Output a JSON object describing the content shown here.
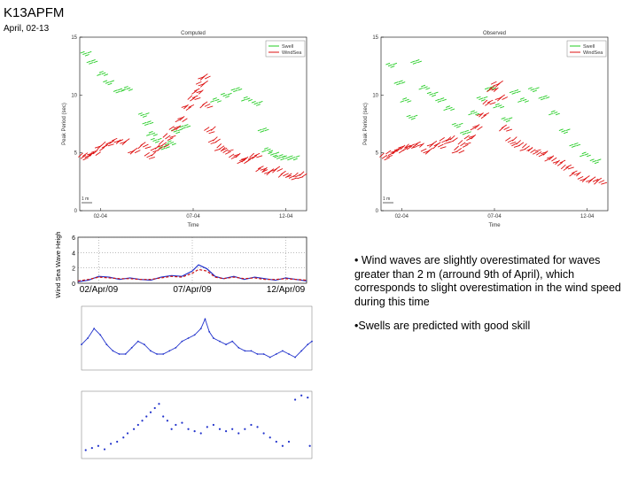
{
  "slide": {
    "title": "K13APFM",
    "subtitle": "April, 02-13"
  },
  "bullets": [
    "• Wind waves are slightly overestimated for waves greater than 2 m (arround 9th of April), which corresponds to slight overestimation in the wind speed during this time",
    "•Swells are predicted with good skill"
  ],
  "colors": {
    "swell": "#22cc22",
    "windsea": "#dd1111",
    "line_blue": "#2233cc",
    "line_red": "#cc1111",
    "axis": "#000000"
  },
  "chart_data": [
    {
      "id": "computed",
      "type": "scatter",
      "title": "Computed",
      "xlabel": "Time",
      "ylabel": "Peak Period (sec)",
      "xticklabels": [
        "02-04",
        "07-04",
        "12-04"
      ],
      "yticks": [
        0,
        5,
        10,
        15
      ],
      "ylim": [
        0,
        15
      ],
      "xlim": [
        0,
        11
      ],
      "legend": {
        "position": "top-right",
        "entries": [
          "Swell",
          "WindSea"
        ]
      },
      "scale_label": "1 m",
      "series": [
        {
          "name": "Swell",
          "points": [
            [
              0.2,
              13.5
            ],
            [
              0.5,
              12.8
            ],
            [
              1.0,
              11.8
            ],
            [
              1.3,
              11.0
            ],
            [
              1.8,
              10.3
            ],
            [
              2.2,
              10.5
            ],
            [
              3.0,
              8.2
            ],
            [
              3.2,
              7.5
            ],
            [
              3.4,
              6.6
            ],
            [
              3.6,
              6.0
            ],
            [
              4.0,
              5.4
            ],
            [
              4.3,
              5.8
            ],
            [
              4.6,
              6.8
            ],
            [
              5.0,
              7.2
            ],
            [
              6.5,
              9.5
            ],
            [
              7.0,
              9.9
            ],
            [
              7.5,
              10.4
            ],
            [
              8.0,
              9.6
            ],
            [
              8.5,
              9.2
            ],
            [
              8.8,
              6.9
            ],
            [
              9.0,
              5.2
            ],
            [
              9.3,
              4.8
            ],
            [
              9.6,
              4.6
            ],
            [
              9.9,
              4.5
            ],
            [
              10.3,
              4.5
            ]
          ]
        },
        {
          "name": "WindSea",
          "points": [
            [
              0.1,
              4.5
            ],
            [
              0.3,
              4.7
            ],
            [
              0.6,
              4.9
            ],
            [
              0.9,
              5.3
            ],
            [
              1.2,
              5.6
            ],
            [
              1.6,
              5.9
            ],
            [
              2.0,
              5.8
            ],
            [
              2.5,
              5.0
            ],
            [
              3.0,
              5.5
            ],
            [
              3.3,
              4.6
            ],
            [
              3.6,
              5.2
            ],
            [
              3.9,
              5.6
            ],
            [
              4.2,
              6.2
            ],
            [
              4.5,
              7.0
            ],
            [
              4.8,
              7.8
            ],
            [
              5.1,
              8.8
            ],
            [
              5.4,
              9.6
            ],
            [
              5.6,
              10.2
            ],
            [
              5.8,
              10.8
            ],
            [
              5.9,
              11.4
            ],
            [
              6.0,
              9.0
            ],
            [
              6.2,
              6.8
            ],
            [
              6.4,
              5.9
            ],
            [
              6.7,
              5.3
            ],
            [
              7.0,
              5.0
            ],
            [
              7.4,
              4.6
            ],
            [
              7.8,
              4.2
            ],
            [
              8.0,
              4.3
            ],
            [
              8.4,
              4.6
            ],
            [
              8.7,
              3.5
            ],
            [
              9.0,
              3.2
            ],
            [
              9.4,
              3.4
            ],
            [
              9.8,
              3.0
            ],
            [
              10.2,
              2.8
            ],
            [
              10.6,
              2.9
            ]
          ]
        }
      ]
    },
    {
      "id": "observed",
      "type": "scatter",
      "title": "Observed",
      "xlabel": "Time",
      "ylabel": "Peak Period (sec)",
      "xticklabels": [
        "02-04",
        "07-04",
        "12-04"
      ],
      "yticks": [
        0,
        5,
        10,
        15
      ],
      "ylim": [
        0,
        15
      ],
      "xlim": [
        0,
        11
      ],
      "legend": {
        "position": "top-right",
        "entries": [
          "Swell",
          "WindSea"
        ]
      },
      "scale_label": "1 m",
      "series": [
        {
          "name": "Swell",
          "points": [
            [
              0.4,
              12.5
            ],
            [
              0.8,
              11.0
            ],
            [
              1.1,
              9.5
            ],
            [
              1.4,
              8.0
            ],
            [
              1.6,
              12.8
            ],
            [
              2.0,
              10.6
            ],
            [
              2.4,
              10.0
            ],
            [
              2.8,
              9.5
            ],
            [
              3.2,
              8.8
            ],
            [
              3.6,
              7.3
            ],
            [
              4.0,
              6.7
            ],
            [
              4.4,
              8.4
            ],
            [
              4.8,
              9.6
            ],
            [
              5.2,
              10.5
            ],
            [
              5.6,
              9.0
            ],
            [
              6.0,
              7.8
            ],
            [
              6.4,
              10.2
            ],
            [
              6.8,
              9.5
            ],
            [
              7.3,
              10.4
            ],
            [
              7.8,
              9.7
            ],
            [
              8.3,
              8.4
            ],
            [
              8.8,
              6.8
            ],
            [
              9.3,
              5.6
            ],
            [
              9.8,
              4.8
            ],
            [
              10.3,
              4.2
            ]
          ]
        },
        {
          "name": "WindSea",
          "points": [
            [
              0.1,
              4.5
            ],
            [
              0.4,
              4.9
            ],
            [
              0.7,
              5.1
            ],
            [
              1.0,
              5.3
            ],
            [
              1.3,
              5.4
            ],
            [
              1.7,
              5.6
            ],
            [
              2.1,
              5.0
            ],
            [
              2.4,
              5.6
            ],
            [
              2.7,
              5.5
            ],
            [
              3.0,
              5.9
            ],
            [
              3.3,
              6.0
            ],
            [
              3.6,
              5.1
            ],
            [
              3.9,
              5.6
            ],
            [
              4.2,
              6.2
            ],
            [
              4.5,
              7.1
            ],
            [
              4.8,
              8.1
            ],
            [
              5.1,
              9.2
            ],
            [
              5.3,
              10.4
            ],
            [
              5.5,
              10.8
            ],
            [
              5.7,
              9.6
            ],
            [
              5.9,
              7.0
            ],
            [
              6.2,
              5.9
            ],
            [
              6.5,
              5.6
            ],
            [
              6.9,
              5.3
            ],
            [
              7.3,
              5.0
            ],
            [
              7.7,
              4.8
            ],
            [
              8.1,
              4.4
            ],
            [
              8.5,
              4.0
            ],
            [
              8.9,
              3.6
            ],
            [
              9.3,
              3.1
            ],
            [
              9.7,
              2.6
            ],
            [
              10.1,
              2.5
            ],
            [
              10.5,
              2.4
            ]
          ]
        }
      ]
    },
    {
      "id": "windsea-height",
      "type": "line",
      "title": "",
      "xlabel": "",
      "ylabel": "Wind Sea Wave Height",
      "xticklabels": [
        "02/Apr/09",
        "07/Apr/09",
        "12/Apr/09"
      ],
      "yticks": [
        0,
        2,
        4,
        6
      ],
      "ylim": [
        0,
        6
      ],
      "xlim": [
        0,
        11
      ],
      "series": [
        {
          "name": "computed",
          "x": [
            0,
            0.5,
            1,
            1.5,
            2,
            2.5,
            3,
            3.5,
            4,
            4.5,
            5,
            5.5,
            5.8,
            6.2,
            6.6,
            7,
            7.5,
            8,
            8.5,
            9,
            9.5,
            10,
            10.5,
            11
          ],
          "values": [
            0.2,
            0.4,
            0.9,
            0.8,
            0.5,
            0.7,
            0.5,
            0.4,
            0.8,
            1.0,
            0.9,
            1.6,
            2.4,
            1.9,
            0.9,
            0.6,
            0.9,
            0.5,
            0.8,
            0.6,
            0.4,
            0.7,
            0.5,
            0.3
          ]
        },
        {
          "name": "observed",
          "x": [
            0,
            0.5,
            1,
            1.5,
            2,
            2.5,
            3,
            3.5,
            4,
            4.5,
            5,
            5.5,
            5.8,
            6.2,
            6.6,
            7,
            7.5,
            8,
            8.5,
            9,
            9.5,
            10,
            10.5,
            11
          ],
          "values": [
            0.3,
            0.5,
            0.8,
            0.7,
            0.6,
            0.6,
            0.5,
            0.5,
            0.7,
            0.9,
            0.8,
            1.3,
            1.8,
            1.6,
            0.8,
            0.6,
            0.8,
            0.6,
            0.7,
            0.5,
            0.5,
            0.6,
            0.5,
            0.4
          ]
        }
      ]
    },
    {
      "id": "wind-speed",
      "type": "line",
      "title": "",
      "xlabel": "",
      "ylabel": "",
      "ylim": [
        0,
        20
      ],
      "xlim": [
        0,
        11
      ],
      "series": [
        {
          "name": "",
          "x": [
            0,
            0.3,
            0.6,
            0.9,
            1.2,
            1.5,
            1.8,
            2.1,
            2.4,
            2.7,
            3.0,
            3.3,
            3.6,
            3.9,
            4.2,
            4.5,
            4.8,
            5.1,
            5.4,
            5.7,
            5.9,
            6.1,
            6.3,
            6.6,
            6.9,
            7.2,
            7.5,
            7.8,
            8.1,
            8.4,
            8.7,
            9.0,
            9.3,
            9.6,
            9.9,
            10.2,
            10.5,
            10.8,
            11
          ],
          "values": [
            8,
            10,
            13,
            11,
            8,
            6,
            5,
            5,
            7,
            9,
            8,
            6,
            5,
            5,
            6,
            7,
            9,
            10,
            11,
            13,
            16,
            12,
            10,
            9,
            8,
            9,
            7,
            6,
            6,
            5,
            5,
            4,
            5,
            6,
            5,
            4,
            6,
            8,
            9
          ]
        }
      ]
    },
    {
      "id": "swell-period",
      "type": "scatter",
      "title": "",
      "xlabel": "",
      "ylabel": "",
      "ylim": [
        0,
        16
      ],
      "xlim": [
        0,
        11
      ],
      "series": [
        {
          "name": "",
          "points": [
            [
              0.2,
              2
            ],
            [
              0.5,
              2.5
            ],
            [
              0.8,
              3
            ],
            [
              1.1,
              2.2
            ],
            [
              1.4,
              3.5
            ],
            [
              1.7,
              4
            ],
            [
              2.0,
              5
            ],
            [
              2.2,
              6
            ],
            [
              2.5,
              7
            ],
            [
              2.7,
              8
            ],
            [
              2.9,
              9
            ],
            [
              3.1,
              10
            ],
            [
              3.3,
              11
            ],
            [
              3.5,
              12
            ],
            [
              3.7,
              13
            ],
            [
              3.9,
              10
            ],
            [
              4.1,
              9
            ],
            [
              4.3,
              7
            ],
            [
              4.5,
              8
            ],
            [
              4.8,
              8.5
            ],
            [
              5.1,
              7
            ],
            [
              5.4,
              6.5
            ],
            [
              5.7,
              6
            ],
            [
              6.0,
              7.5
            ],
            [
              6.3,
              8
            ],
            [
              6.6,
              7
            ],
            [
              6.9,
              6.5
            ],
            [
              7.2,
              7
            ],
            [
              7.5,
              6
            ],
            [
              7.8,
              7
            ],
            [
              8.1,
              8
            ],
            [
              8.4,
              7.5
            ],
            [
              8.7,
              6
            ],
            [
              9.0,
              5
            ],
            [
              9.3,
              4
            ],
            [
              9.6,
              3
            ],
            [
              9.9,
              4
            ],
            [
              10.2,
              14
            ],
            [
              10.5,
              15
            ],
            [
              10.8,
              14.5
            ],
            [
              10.9,
              3
            ]
          ]
        }
      ]
    }
  ]
}
